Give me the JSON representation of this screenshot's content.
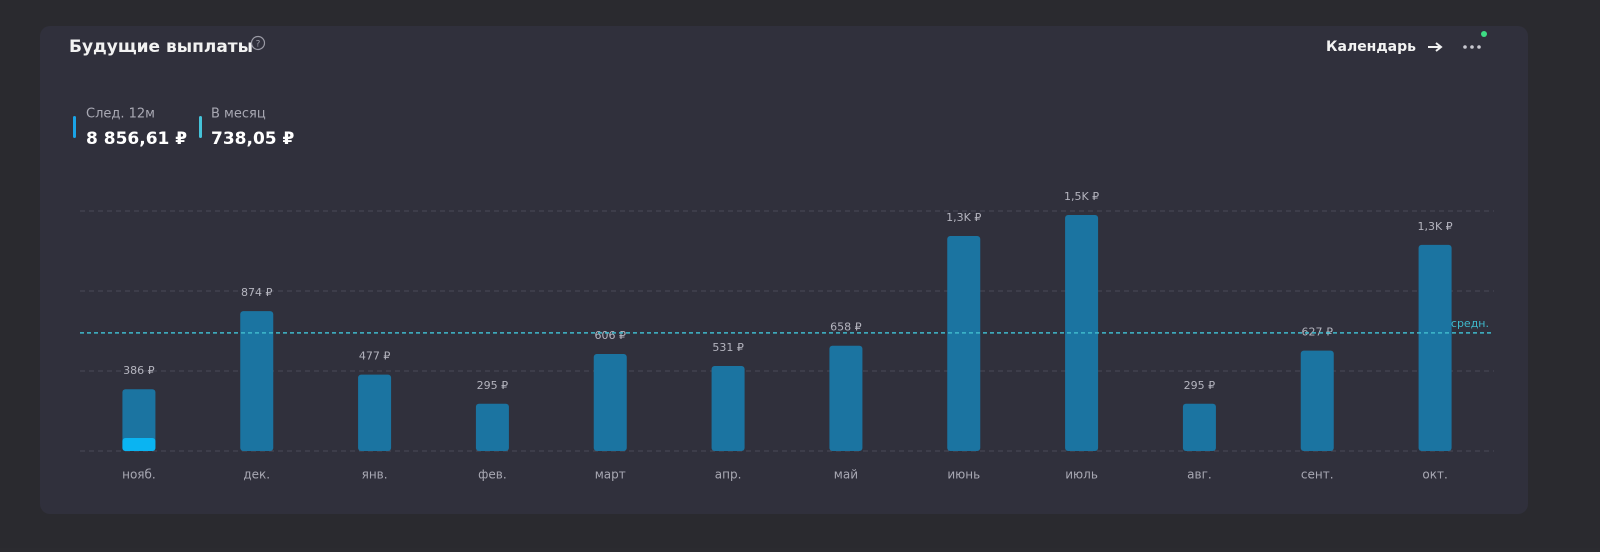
{
  "header": {
    "title": "Будущие выплаты",
    "link": "Календарь"
  },
  "summary": [
    {
      "label": "След. 12м",
      "value": "8 856,61 ₽"
    },
    {
      "label": "В месяц",
      "value": "738,05 ₽"
    }
  ],
  "chart_data": {
    "type": "bar",
    "categories": [
      "нояб.",
      "дек.",
      "янв.",
      "фев.",
      "март",
      "апр.",
      "май",
      "июнь",
      "июль",
      "авг.",
      "сент.",
      "окт."
    ],
    "series": [
      {
        "color": "#1b74a1",
        "values": [
          386,
          874,
          477,
          295,
          606,
          531,
          658,
          1344,
          1475,
          295,
          627,
          1288
        ],
        "value_labels": [
          "386 ₽",
          "874 ₽",
          "477 ₽",
          "295 ₽",
          "606 ₽",
          "531 ₽",
          "658 ₽",
          "1,3K ₽",
          "1,5K ₽",
          "295 ₽",
          "627 ₽",
          "1,3K ₽"
        ]
      },
      {
        "color": "#0ab4f2",
        "values": [
          81,
          null,
          null,
          null,
          null,
          null,
          null,
          null,
          null,
          null,
          null,
          null
        ]
      }
    ],
    "ylim": [
      0,
      1500
    ],
    "yticks": [
      0,
      500,
      1000,
      1500
    ],
    "grid": true,
    "average": {
      "value": 738.05,
      "label": "средн.",
      "color": "#3fb9cc"
    }
  }
}
